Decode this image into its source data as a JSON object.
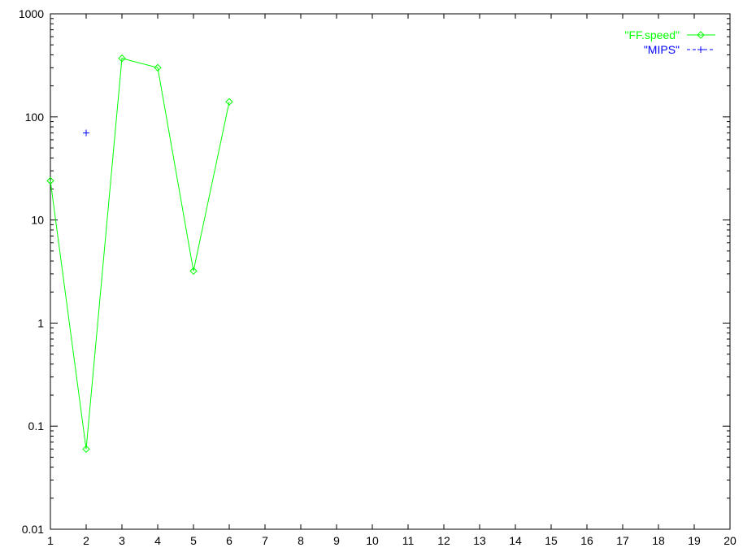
{
  "chart_data": {
    "type": "line",
    "title": "",
    "xlabel": "",
    "ylabel": "",
    "xlim": [
      1,
      20
    ],
    "ylim": [
      0.01,
      1000
    ],
    "yscale": "log",
    "x_ticks": [
      1,
      2,
      3,
      4,
      5,
      6,
      7,
      8,
      9,
      10,
      11,
      12,
      13,
      14,
      15,
      16,
      17,
      18,
      19,
      20
    ],
    "x_tick_labels": [
      "1",
      "2",
      "3",
      "4",
      "5",
      "6",
      "7",
      "8",
      "9",
      "10",
      "11",
      "12",
      "13",
      "14",
      "15",
      "16",
      "17",
      "18",
      "19",
      "20"
    ],
    "y_ticks": [
      0.01,
      0.1,
      1,
      10,
      100,
      1000
    ],
    "y_tick_labels": [
      "0.01",
      "0.1",
      "1",
      "10",
      "100",
      "1000"
    ],
    "grid": false,
    "legend_position": "top-right",
    "series": [
      {
        "name": "\"FF.speed\"",
        "color": "#00ff00",
        "marker": "diamond",
        "line": "solid",
        "x": [
          1,
          2,
          3,
          4,
          5,
          6
        ],
        "y": [
          24,
          0.06,
          370,
          300,
          3.2,
          140
        ]
      },
      {
        "name": "\"MIPS\"",
        "color": "#0000ff",
        "marker": "plus",
        "line": "dashed",
        "x": [
          2
        ],
        "y": [
          70
        ]
      }
    ]
  }
}
